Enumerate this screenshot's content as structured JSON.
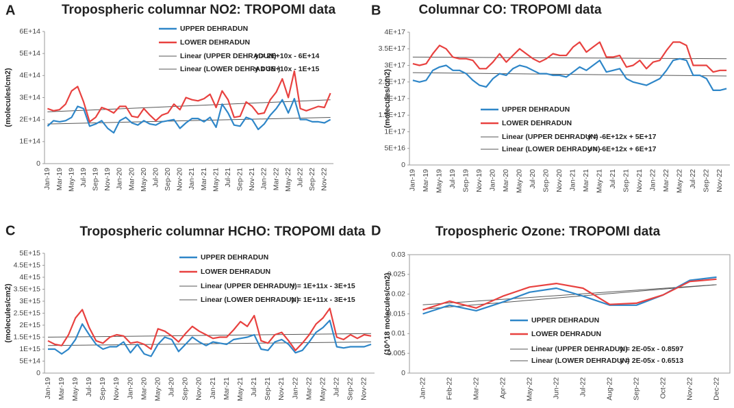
{
  "chart_data": [
    {
      "type": "line",
      "panel": "A",
      "title": "Tropospheric columnar NO2: TROPOMI data",
      "y_label": "(molecules/cm2)",
      "categories": [
        "Jan-19",
        null,
        "Mar-19",
        null,
        "May-19",
        null,
        "Jul-19",
        null,
        "Sep-19",
        null,
        "Nov-19",
        null,
        "Jan-20",
        null,
        "Mar-20",
        null,
        "May-20",
        null,
        "Jul-20",
        null,
        "Sep-20",
        null,
        "Nov-20",
        null,
        "Jan-21",
        null,
        "Mar-21",
        null,
        "May-21",
        null,
        "Jul-21",
        null,
        "Sep-21",
        null,
        "Nov-21",
        null,
        "Jan-22",
        null,
        "Mar-22",
        null,
        "May-22",
        null,
        "Jul-22",
        null,
        "Sep-22",
        null,
        "Nov-22",
        null
      ],
      "ylim": [
        0,
        600000000000000.0
      ],
      "yticks": [
        0,
        {
          "value": 100000000000000.0,
          "label": "1E+14"
        },
        {
          "value": 200000000000000.0,
          "label": "2E+14"
        },
        {
          "value": 300000000000000.0,
          "label": "3E+14"
        },
        {
          "value": 400000000000000.0,
          "label": "4E+14"
        },
        {
          "value": 500000000000000.0,
          "label": "5E+14"
        },
        {
          "value": 600000000000000.0,
          "label": "6E+14"
        }
      ],
      "series": [
        {
          "name": "UPPER DEHRADUN",
          "color": "#2e86c8",
          "values": [
            170000000000000.0,
            195000000000000.0,
            190000000000000.0,
            195000000000000.0,
            210000000000000.0,
            260000000000000.0,
            250000000000000.0,
            170000000000000.0,
            180000000000000.0,
            195000000000000.0,
            160000000000000.0,
            140000000000000.0,
            195000000000000.0,
            210000000000000.0,
            185000000000000.0,
            175000000000000.0,
            195000000000000.0,
            180000000000000.0,
            175000000000000.0,
            190000000000000.0,
            195000000000000.0,
            200000000000000.0,
            160000000000000.0,
            185000000000000.0,
            205000000000000.0,
            205000000000000.0,
            190000000000000.0,
            210000000000000.0,
            165000000000000.0,
            270000000000000.0,
            230000000000000.0,
            175000000000000.0,
            170000000000000.0,
            210000000000000.0,
            200000000000000.0,
            155000000000000.0,
            180000000000000.0,
            220000000000000.0,
            250000000000000.0,
            290000000000000.0,
            230000000000000.0,
            295000000000000.0,
            200000000000000.0,
            200000000000000.0,
            190000000000000.0,
            190000000000000.0,
            185000000000000.0,
            200000000000000.0
          ]
        },
        {
          "name": "LOWER DEHRADUN",
          "color": "#e8413f",
          "values": [
            250000000000000.0,
            240000000000000.0,
            245000000000000.0,
            270000000000000.0,
            330000000000000.0,
            350000000000000.0,
            280000000000000.0,
            190000000000000.0,
            210000000000000.0,
            255000000000000.0,
            245000000000000.0,
            230000000000000.0,
            260000000000000.0,
            260000000000000.0,
            215000000000000.0,
            210000000000000.0,
            250000000000000.0,
            220000000000000.0,
            195000000000000.0,
            220000000000000.0,
            230000000000000.0,
            270000000000000.0,
            245000000000000.0,
            300000000000000.0,
            290000000000000.0,
            285000000000000.0,
            295000000000000.0,
            315000000000000.0,
            255000000000000.0,
            330000000000000.0,
            290000000000000.0,
            210000000000000.0,
            215000000000000.0,
            280000000000000.0,
            260000000000000.0,
            225000000000000.0,
            230000000000000.0,
            290000000000000.0,
            325000000000000.0,
            385000000000000.0,
            300000000000000.0,
            420000000000000.0,
            250000000000000.0,
            240000000000000.0,
            250000000000000.0,
            260000000000000.0,
            255000000000000.0,
            320000000000000.0
          ]
        }
      ],
      "trendlines": [
        {
          "name": "Linear (UPPER DEHRADUN)",
          "equation": "y = 2E+10x - 6E+14",
          "color": "#555555",
          "start": 180000000000000.0,
          "end": 210000000000000.0
        },
        {
          "name": "Linear (LOWER DEHRADUN )",
          "equation": "y = 3E+10x - 1E+15",
          "color": "#555555",
          "start": 235000000000000.0,
          "end": 290000000000000.0
        }
      ]
    },
    {
      "type": "line",
      "panel": "B",
      "title": "Columnar  CO: TROPOMI data",
      "y_label": "(molecules/cm2)",
      "categories": [
        "Jan-19",
        null,
        "Mar-19",
        null,
        "May-19",
        null,
        "Jul-19",
        null,
        "Sep-19",
        null,
        "Nov-19",
        null,
        "Jan-20",
        null,
        "Mar-20",
        null,
        "May-20",
        null,
        "Jul-20",
        null,
        "Sep-20",
        null,
        "Nov-20",
        null,
        "Jan-21",
        null,
        "Mar-21",
        null,
        "May-21",
        null,
        "Jul-21",
        null,
        "Sep-21",
        null,
        "Nov-21",
        null,
        "Jan-22",
        null,
        "Mar-22",
        null,
        "May-22",
        null,
        "Jul-22",
        null,
        "Sep-22",
        null,
        "Nov-22",
        null
      ],
      "ylim": [
        0,
        4e+17
      ],
      "yticks": [
        0,
        {
          "value": 5e+16,
          "label": "5E+16"
        },
        {
          "value": 1e+17,
          "label": "1E+17"
        },
        {
          "value": 1.5e+17,
          "label": "1.5E+17"
        },
        {
          "value": 2e+17,
          "label": "2E+17"
        },
        {
          "value": 2.5e+17,
          "label": "2.5E+17"
        },
        {
          "value": 3e+17,
          "label": "3E+17"
        },
        {
          "value": 3.5e+17,
          "label": "3.5E+17"
        },
        {
          "value": 4e+17,
          "label": "4E+17"
        }
      ],
      "series": [
        {
          "name": "UPPER DEHRADUN",
          "color": "#2e86c8",
          "values": [
            2.55e+17,
            2.5e+17,
            2.55e+17,
            2.85e+17,
            2.95e+17,
            3e+17,
            2.85e+17,
            2.85e+17,
            2.75e+17,
            2.55e+17,
            2.4e+17,
            2.35e+17,
            2.6e+17,
            2.75e+17,
            2.7e+17,
            2.9e+17,
            3e+17,
            2.95e+17,
            2.85e+17,
            2.75e+17,
            2.75e+17,
            2.7e+17,
            2.7e+17,
            2.65e+17,
            2.8e+17,
            2.95e+17,
            2.85e+17,
            3e+17,
            3.15e+17,
            2.8e+17,
            2.85e+17,
            2.9e+17,
            2.6e+17,
            2.5e+17,
            2.45e+17,
            2.4e+17,
            2.5e+17,
            2.6e+17,
            2.85e+17,
            3.15e+17,
            3.2e+17,
            3.15e+17,
            2.7e+17,
            2.7e+17,
            2.6e+17,
            2.25e+17,
            2.25e+17,
            2.3e+17
          ]
        },
        {
          "name": "LOWER DEHRADUN",
          "color": "#e8413f",
          "values": [
            3.05e+17,
            3e+17,
            3.05e+17,
            3.35e+17,
            3.6e+17,
            3.5e+17,
            3.25e+17,
            3.2e+17,
            3.2e+17,
            3.15e+17,
            2.9e+17,
            2.9e+17,
            3.1e+17,
            3.35e+17,
            3.1e+17,
            3.3e+17,
            3.5e+17,
            3.35e+17,
            3.2e+17,
            3.1e+17,
            3.2e+17,
            3.35e+17,
            3.3e+17,
            3.3e+17,
            3.55e+17,
            3.7e+17,
            3.4e+17,
            3.55e+17,
            3.7e+17,
            3.25e+17,
            3.25e+17,
            3.3e+17,
            2.95e+17,
            3e+17,
            3.15e+17,
            2.9e+17,
            3.1e+17,
            3.15e+17,
            3.45e+17,
            3.7e+17,
            3.7e+17,
            3.6e+17,
            3e+17,
            3e+17,
            3e+17,
            2.8e+17,
            2.85e+17,
            2.85e+17
          ]
        }
      ],
      "trendlines": [
        {
          "name": "Linear (UPPER DEHRADUN)",
          "equation": "y = -6E+12x + 5E+17",
          "color": "#555555",
          "start": 2.78e+17,
          "end": 2.68e+17
        },
        {
          "name": "Linear (LOWER DEHRADUN)",
          "equation": "y = -6E+12x + 6E+17",
          "color": "#555555",
          "start": 3.25e+17,
          "end": 3.2e+17
        }
      ]
    },
    {
      "type": "line",
      "panel": "C",
      "title": "Tropospheric columnar HCHO: TROPOMI data",
      "y_label": "(molecules/cm2)",
      "categories": [
        "Jan-19",
        null,
        "Mar-19",
        null,
        "May-19",
        null,
        "Jul-19",
        null,
        "Sep-19",
        null,
        "Nov-19",
        null,
        "Jan-20",
        null,
        "Mar-20",
        null,
        "May-20",
        null,
        "Jul-20",
        null,
        "Sep-20",
        null,
        "Nov-20",
        null,
        "Jan-21",
        null,
        "Mar-21",
        null,
        "May-21",
        null,
        "Jul-21",
        null,
        "Sep-21",
        null,
        "Nov-21",
        null,
        "Jan-22",
        null,
        "Mar-22",
        null,
        "May-22",
        null,
        "Jul-22",
        null,
        "Sep-22",
        null,
        "Nov-22",
        null
      ],
      "ylim": [
        0,
        5000000000000000.0
      ],
      "yticks": [
        0,
        {
          "value": 500000000000000.0,
          "label": "5E+14"
        },
        {
          "value": 1000000000000000.0,
          "label": "1E+15"
        },
        {
          "value": 1500000000000000.0,
          "label": "1.5E+15"
        },
        {
          "value": 2000000000000000.0,
          "label": "2E+15"
        },
        {
          "value": 2500000000000000.0,
          "label": "2.5E+15"
        },
        {
          "value": 3000000000000000.0,
          "label": "3E+15"
        },
        {
          "value": 3500000000000000.0,
          "label": "3.5E+15"
        },
        {
          "value": 4000000000000000.0,
          "label": "4E+15"
        },
        {
          "value": 4500000000000000.0,
          "label": "4.5E+15"
        },
        {
          "value": 5000000000000000.0,
          "label": "5E+15"
        }
      ],
      "series": [
        {
          "name": "UPPER DEHRADUN",
          "color": "#2e86c8",
          "values": [
            1000000000000000.0,
            1000000000000000.0,
            800000000000000.0,
            1000000000000000.0,
            1400000000000000.0,
            2050000000000000.0,
            1600000000000000.0,
            1200000000000000.0,
            1000000000000000.0,
            1100000000000000.0,
            1100000000000000.0,
            1300000000000000.0,
            850000000000000.0,
            1200000000000000.0,
            800000000000000.0,
            700000000000000.0,
            1200000000000000.0,
            1500000000000000.0,
            1400000000000000.0,
            900000000000000.0,
            1200000000000000.0,
            1500000000000000.0,
            1300000000000000.0,
            1150000000000000.0,
            1300000000000000.0,
            1250000000000000.0,
            1200000000000000.0,
            1400000000000000.0,
            1450000000000000.0,
            1500000000000000.0,
            1600000000000000.0,
            1000000000000000.0,
            950000000000000.0,
            1300000000000000.0,
            1400000000000000.0,
            1200000000000000.0,
            850000000000000.0,
            950000000000000.0,
            1300000000000000.0,
            1700000000000000.0,
            1900000000000000.0,
            2200000000000000.0,
            1100000000000000.0,
            1050000000000000.0,
            1100000000000000.0,
            1100000000000000.0,
            1100000000000000.0,
            1200000000000000.0
          ]
        },
        {
          "name": "LOWER DEHRADUN",
          "color": "#e8413f",
          "values": [
            1350000000000000.0,
            1200000000000000.0,
            1150000000000000.0,
            1600000000000000.0,
            2300000000000000.0,
            2650000000000000.0,
            1900000000000000.0,
            1350000000000000.0,
            1250000000000000.0,
            1500000000000000.0,
            1600000000000000.0,
            1550000000000000.0,
            1250000000000000.0,
            1300000000000000.0,
            1200000000000000.0,
            1000000000000000.0,
            1850000000000000.0,
            1750000000000000.0,
            1550000000000000.0,
            1300000000000000.0,
            1650000000000000.0,
            1950000000000000.0,
            1750000000000000.0,
            1600000000000000.0,
            1450000000000000.0,
            1500000000000000.0,
            1500000000000000.0,
            1800000000000000.0,
            2150000000000000.0,
            1950000000000000.0,
            2400000000000000.0,
            1350000000000000.0,
            1250000000000000.0,
            1600000000000000.0,
            1700000000000000.0,
            1350000000000000.0,
            950000000000000.0,
            1250000000000000.0,
            1600000000000000.0,
            2050000000000000.0,
            2300000000000000.0,
            2700000000000000.0,
            1500000000000000.0,
            1400000000000000.0,
            1600000000000000.0,
            1450000000000000.0,
            1600000000000000.0,
            1550000000000000.0
          ]
        }
      ],
      "trendlines": [
        {
          "name": "Linear (UPPER DEHRADUN)",
          "equation": "y = 1E+11x - 3E+15",
          "color": "#555555",
          "start": 1150000000000000.0,
          "end": 1300000000000000.0
        },
        {
          "name": "Linear (LOWER DEHRADUN)",
          "equation": "y = 1E+11x - 3E+15",
          "color": "#555555",
          "start": 1500000000000000.0,
          "end": 1650000000000000.0
        }
      ]
    },
    {
      "type": "line",
      "panel": "D",
      "title": "Tropospheric Ozone: TROPOMI data",
      "y_label": "(10^18 molecules/cm2)",
      "categories": [
        "Jan-22",
        "Feb-22",
        "Mar-22",
        "Apr-22",
        "May-22",
        "Jun-22",
        "Jul-22",
        "Aug-22",
        "Sep-22",
        "Oct-22",
        "Nov-22",
        "Dec-22"
      ],
      "ylim": [
        0,
        0.03
      ],
      "yticks": [
        0,
        0.005,
        0.01,
        0.015,
        0.02,
        0.025,
        0.03
      ],
      "series": [
        {
          "name": "UPPER DEHRADUN",
          "color": "#2e86c8",
          "values": [
            0.015,
            0.0172,
            0.0158,
            0.018,
            0.0205,
            0.0215,
            0.0195,
            0.0172,
            0.0172,
            0.0198,
            0.0235,
            0.0243
          ]
        },
        {
          "name": "LOWER DEHRADUN",
          "color": "#e8413f",
          "values": [
            0.016,
            0.0182,
            0.0165,
            0.0195,
            0.0218,
            0.0227,
            0.0215,
            0.0174,
            0.0177,
            0.0198,
            0.0232,
            0.0238
          ]
        }
      ],
      "trendlines": [
        {
          "name": "Linear (UPPER DEHRADUN)",
          "equation": "y = 2E-05x - 0.8597",
          "color": "#555555",
          "start": 0.0162,
          "end": 0.0224
        },
        {
          "name": "Linear (LOWER DEHRADUN)",
          "equation": "y = 2E-05x - 0.6513",
          "color": "#555555",
          "start": 0.0173,
          "end": 0.0224
        }
      ]
    }
  ]
}
